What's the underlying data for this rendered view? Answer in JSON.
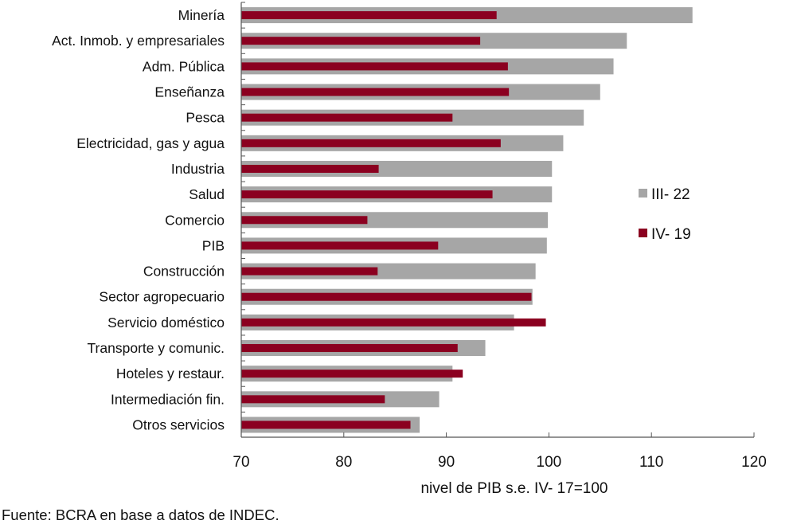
{
  "chart_data": {
    "type": "bar",
    "orientation": "horizontal",
    "title": "",
    "xlabel": "nivel de PIB s.e. IV-17=100",
    "ylabel": "",
    "xlim": [
      70,
      120
    ],
    "xticks": [
      70,
      80,
      90,
      100,
      110,
      120
    ],
    "grid": false,
    "legend_position": "right",
    "categories": [
      "Minería",
      "Act. Inmob. y empresariales",
      "Adm. Pública",
      "Enseñanza",
      "Pesca",
      "Electricidad, gas y agua",
      "Industria",
      "Salud",
      "Comercio",
      "PIB",
      "Construcción",
      "Sector agropecuario",
      "Servicio doméstico",
      "Transporte y comunic.",
      "Hoteles y restaur.",
      "Intermediación fin.",
      "Otros servicios"
    ],
    "series": [
      {
        "name": "III-22",
        "color": "#a6a6a6",
        "values": [
          114.0,
          107.6,
          106.3,
          105.0,
          103.4,
          101.4,
          100.3,
          100.3,
          99.9,
          99.8,
          98.7,
          98.4,
          96.6,
          93.8,
          90.6,
          89.3,
          87.4
        ]
      },
      {
        "name": "IV-19",
        "color": "#8b0020",
        "values": [
          94.9,
          93.3,
          96.0,
          96.1,
          90.6,
          95.3,
          83.4,
          94.5,
          82.3,
          89.2,
          83.3,
          98.3,
          99.7,
          91.1,
          91.6,
          84.0,
          86.5
        ]
      }
    ]
  },
  "legend": {
    "items": [
      {
        "label": "III- 22",
        "color": "#a6a6a6"
      },
      {
        "label": "IV- 19",
        "color": "#8b0020"
      }
    ]
  },
  "xlabel_text": "nivel de PIB s.e. IV- 17=100",
  "source": "Fuente: BCRA en base a datos de INDEC."
}
